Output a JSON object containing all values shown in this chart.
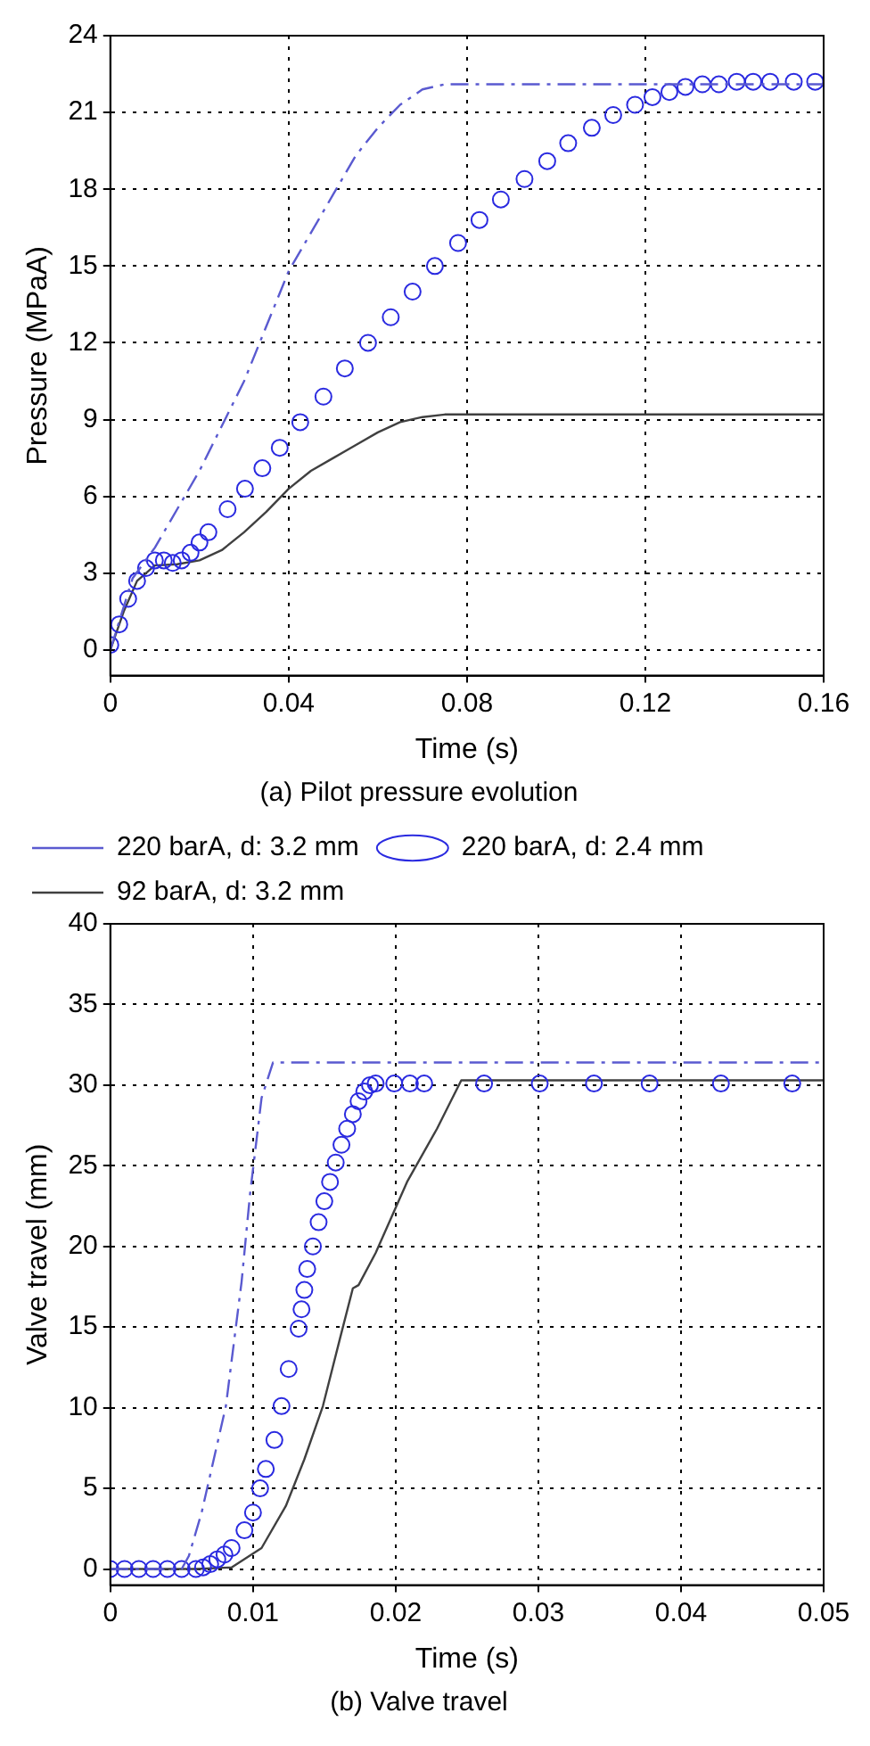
{
  "chart_data": [
    {
      "type": "line",
      "title": "(a) Pilot pressure evolution",
      "xlabel": "Time (s)",
      "ylabel": "Pressure (MPaA)",
      "xlim": [
        0,
        0.16
      ],
      "xticks": [
        0,
        0.04,
        0.08,
        0.12,
        0.16
      ],
      "ylim": [
        -1,
        24
      ],
      "yticks": [
        0,
        3,
        6,
        9,
        12,
        15,
        18,
        21,
        24
      ],
      "grid": true,
      "legend": false,
      "series": [
        {
          "type": "line",
          "color": "#5a5ad0",
          "line_style": "dashed",
          "marker": "none",
          "x": [
            0,
            0.005,
            0.01,
            0.02,
            0.03,
            0.04,
            0.05,
            0.055,
            0.06,
            0.065,
            0.07,
            0.075,
            0.16
          ],
          "values": [
            0,
            2.8,
            4,
            7,
            10.5,
            14.8,
            17.8,
            19.3,
            20.4,
            21.3,
            21.9,
            22.1,
            22.1
          ]
        },
        {
          "type": "scatter",
          "color": "#2a2ae0",
          "marker": "circle",
          "x": [
            0,
            0.002,
            0.004,
            0.006,
            0.008,
            0.01,
            0.012,
            0.014,
            0.016,
            0.018,
            0.02,
            0.022,
            0.0263,
            0.0302,
            0.0341,
            0.038,
            0.0426,
            0.0478,
            0.0526,
            0.0578,
            0.0629,
            0.0678,
            0.0728,
            0.078,
            0.0828,
            0.0876,
            0.0929,
            0.098,
            0.1027,
            0.108,
            0.1128,
            0.1177,
            0.1216,
            0.1254,
            0.129,
            0.1328,
            0.1365,
            0.1405,
            0.1442,
            0.148,
            0.1533,
            0.1581
          ],
          "values": [
            0.2,
            1,
            2,
            2.7,
            3.2,
            3.5,
            3.5,
            3.4,
            3.5,
            3.8,
            4.2,
            4.6,
            5.5,
            6.3,
            7.1,
            7.9,
            8.9,
            9.9,
            11,
            12,
            13,
            14,
            15,
            15.9,
            16.8,
            17.6,
            18.4,
            19.1,
            19.8,
            20.4,
            20.9,
            21.3,
            21.6,
            21.8,
            22,
            22.1,
            22.1,
            22.2,
            22.2,
            22.2,
            22.2,
            22.2
          ]
        },
        {
          "type": "line",
          "color": "#404040",
          "line_style": "solid",
          "marker": "none",
          "x": [
            0,
            0.003,
            0.006,
            0.01,
            0.015,
            0.02,
            0.025,
            0.03,
            0.035,
            0.04,
            0.045,
            0.05,
            0.055,
            0.06,
            0.065,
            0.07,
            0.075,
            0.16
          ],
          "values": [
            0,
            1.5,
            2.7,
            3.3,
            3.35,
            3.5,
            3.9,
            4.6,
            5.4,
            6.3,
            7,
            7.5,
            8,
            8.5,
            8.9,
            9.1,
            9.2,
            9.2
          ]
        }
      ]
    },
    {
      "type": "line",
      "title": "(b) Valve travel",
      "xlabel": "Time (s)",
      "ylabel": "Valve travel (mm)",
      "xlim": [
        0,
        0.05
      ],
      "xticks": [
        0,
        0.01,
        0.02,
        0.03,
        0.04,
        0.05
      ],
      "ylim": [
        -1,
        40
      ],
      "yticks": [
        0,
        5,
        10,
        15,
        20,
        25,
        30,
        35,
        40
      ],
      "grid": true,
      "legend": "top left",
      "series": [
        {
          "type": "line",
          "name": "220 barA, d: 3.2 mm",
          "color": "#5a5ad0",
          "line_style": "dashed",
          "marker": "none",
          "x": [
            0,
            0.005,
            0.0055,
            0.0064,
            0.0081,
            0.0092,
            0.0098,
            0.0106,
            0.0114,
            0.05
          ],
          "values": [
            0,
            0,
            0.8,
            3.5,
            10.1,
            17.8,
            23.3,
            29.2,
            31.4,
            31.4
          ]
        },
        {
          "type": "scatter",
          "name": "220 barA, d: 2.4 mm",
          "color": "#2a2ae0",
          "marker": "circle",
          "x": [
            0,
            0.001,
            0.002,
            0.003,
            0.004,
            0.005,
            0.006,
            0.0065,
            0.007,
            0.0075,
            0.008,
            0.0085,
            0.0094,
            0.01,
            0.0105,
            0.0109,
            0.0115,
            0.012,
            0.0125,
            0.0132,
            0.0134,
            0.0136,
            0.0138,
            0.0142,
            0.0146,
            0.015,
            0.0154,
            0.0158,
            0.0162,
            0.0166,
            0.017,
            0.0174,
            0.0178,
            0.0182,
            0.0186,
            0.0199,
            0.021,
            0.022,
            0.0262,
            0.0301,
            0.0339,
            0.0378,
            0.0428,
            0.0478
          ],
          "values": [
            0,
            0,
            0,
            0,
            0,
            0,
            0,
            0.1,
            0.3,
            0.6,
            0.9,
            1.3,
            2.4,
            3.5,
            5,
            6.2,
            8,
            10.1,
            12.4,
            14.9,
            16.1,
            17.3,
            18.6,
            20,
            21.5,
            22.8,
            24,
            25.2,
            26.3,
            27.3,
            28.2,
            29,
            29.6,
            30,
            30.1,
            30.1,
            30.1,
            30.1,
            30.1,
            30.1,
            30.1,
            30.1,
            30.1,
            30.1
          ]
        },
        {
          "type": "line",
          "name": "92 barA, d: 3.2 mm",
          "color": "#404040",
          "line_style": "solid",
          "marker": "none",
          "x": [
            0,
            0.006,
            0.0085,
            0.0106,
            0.0123,
            0.0136,
            0.0149,
            0.0161,
            0.017,
            0.0174,
            0.0186,
            0.0208,
            0.0229,
            0.0246,
            0.05
          ],
          "values": [
            0,
            0,
            0.1,
            1.3,
            3.9,
            6.8,
            10.1,
            14.3,
            17.4,
            17.6,
            19.6,
            24,
            27.3,
            30.3,
            30.3
          ]
        }
      ]
    }
  ]
}
